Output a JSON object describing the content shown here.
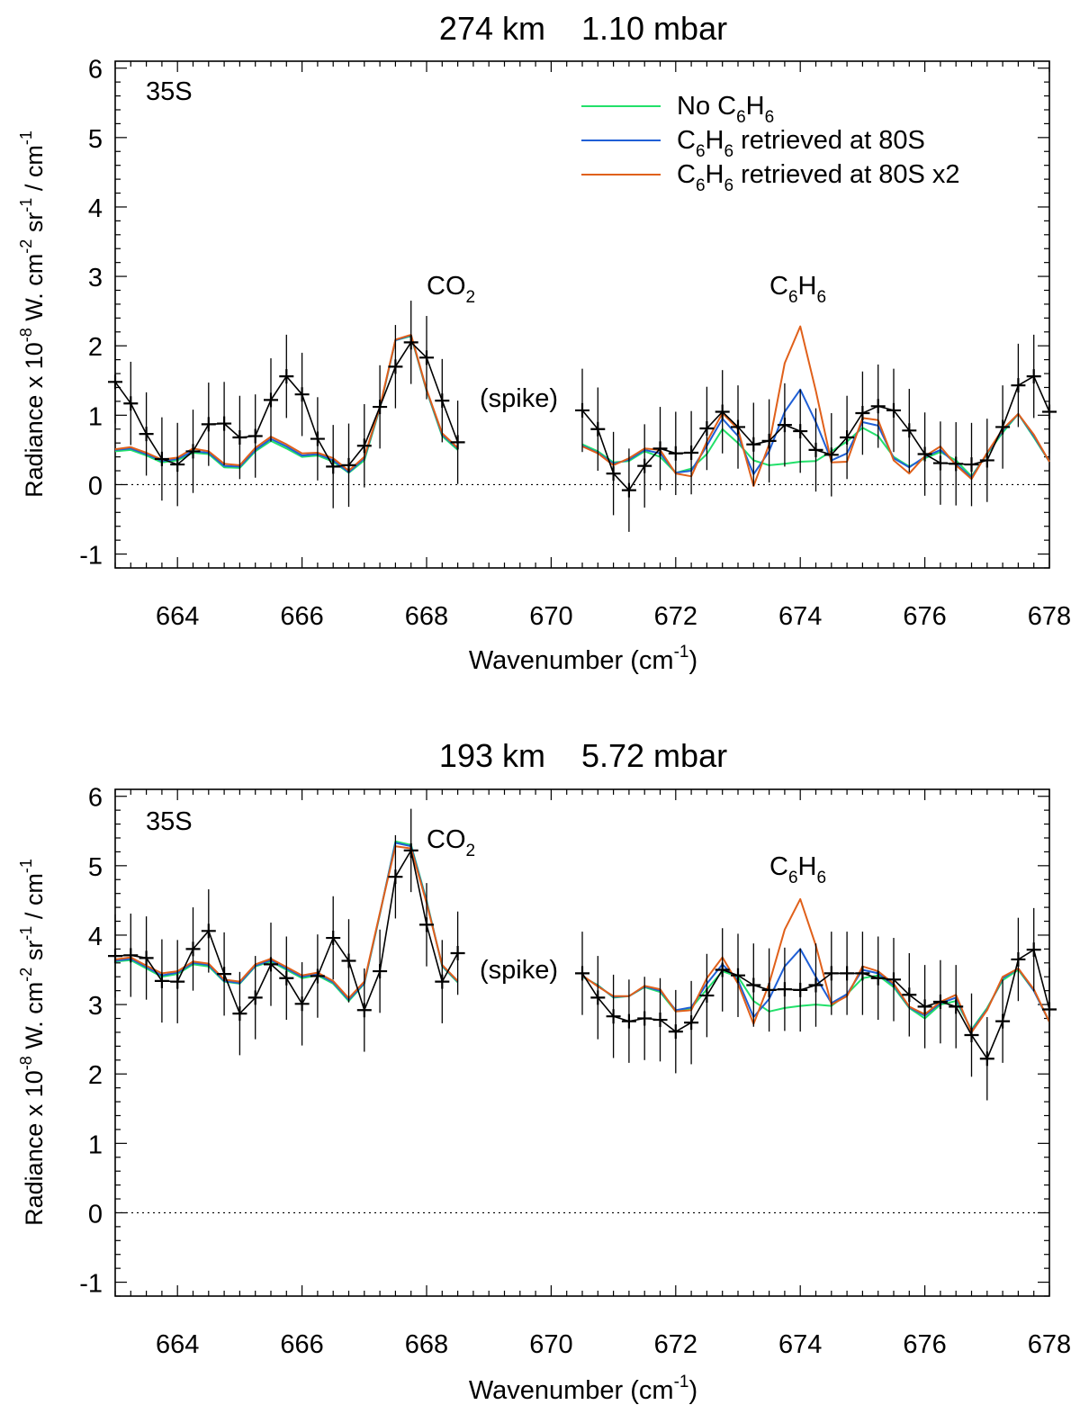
{
  "chart_data": [
    {
      "type": "line",
      "title": "274 km    1.10 mbar",
      "panel_label": "35S",
      "xlabel": "Wavenumber (cm",
      "xlabel_sup": "-1",
      "xlabel_close": ")",
      "ylabel": "Radiance x 10",
      "ylabel_sup1": "-8",
      "ylabel_mid1": " W. cm",
      "ylabel_sup2": "-2",
      "ylabel_mid2": " sr",
      "ylabel_sup3": "-1",
      "ylabel_mid3": " / cm",
      "ylabel_sup4": "-1",
      "xlim": [
        663,
        678
      ],
      "ylim": [
        -1.2,
        6.1
      ],
      "xticks": [
        "664",
        "666",
        "668",
        "670",
        "672",
        "674",
        "676",
        "678"
      ],
      "yticks": [
        "-1",
        "0",
        "1",
        "2",
        "3",
        "4",
        "5",
        "6"
      ],
      "annotations": {
        "co2": "CO",
        "co2_sub": "2",
        "c6h6": "C",
        "c6h6_sub1": "6",
        "c6h6_mid": "H",
        "c6h6_sub2": "6",
        "spike": "(spike)"
      },
      "legend": [
        {
          "pre": "No C",
          "sub1": "6",
          "mid": "H",
          "sub2": "6",
          "post": "",
          "color": "#22e06a"
        },
        {
          "pre": "C",
          "sub1": "6",
          "mid": "H",
          "sub2": "6",
          "post": " retrieved at 80S",
          "color": "#1f5fd6"
        },
        {
          "pre": "C",
          "sub1": "6",
          "mid": "H",
          "sub2": "6",
          "post": " retrieved at 80S x2",
          "color": "#e0601a"
        }
      ],
      "observed": {
        "x": [
          663.0,
          663.25,
          663.5,
          663.75,
          664.0,
          664.25,
          664.5,
          664.75,
          665.0,
          665.25,
          665.5,
          665.75,
          666.0,
          666.25,
          666.5,
          666.75,
          667.0,
          667.25,
          667.5,
          667.75,
          668.0,
          668.25,
          668.5,
          670.5,
          670.75,
          671.0,
          671.25,
          671.5,
          671.75,
          672.0,
          672.25,
          672.5,
          672.75,
          673.0,
          673.25,
          673.5,
          673.75,
          674.0,
          674.25,
          674.5,
          674.75,
          675.0,
          675.25,
          675.5,
          675.75,
          676.0,
          676.25,
          676.5,
          676.75,
          677.0,
          677.25,
          677.5,
          677.75,
          678.0
        ],
        "y": [
          1.48,
          1.17,
          0.73,
          0.37,
          0.29,
          0.48,
          0.87,
          0.88,
          0.68,
          0.7,
          1.22,
          1.56,
          1.3,
          0.66,
          0.26,
          0.28,
          0.56,
          1.12,
          1.7,
          2.05,
          1.83,
          1.21,
          0.61,
          1.07,
          0.8,
          0.16,
          -0.08,
          0.27,
          0.52,
          0.45,
          0.46,
          0.81,
          1.05,
          0.83,
          0.58,
          0.63,
          0.86,
          0.77,
          0.5,
          0.43,
          0.68,
          1.03,
          1.13,
          1.07,
          0.78,
          0.44,
          0.31,
          0.3,
          0.29,
          0.35,
          0.83,
          1.43,
          1.56,
          1.05
        ],
        "err": 0.6
      },
      "series": [
        {
          "name": "No C6H6",
          "color": "#22e06a",
          "x": [
            663.0,
            663.25,
            663.5,
            663.75,
            664.0,
            664.25,
            664.5,
            664.75,
            665.0,
            665.25,
            665.5,
            665.75,
            666.0,
            666.25,
            666.5,
            666.75,
            667.0,
            667.25,
            667.5,
            667.75,
            668.0,
            668.25,
            668.5,
            null,
            670.5,
            670.75,
            671.0,
            671.25,
            671.5,
            671.75,
            672.0,
            672.25,
            672.5,
            672.75,
            673.0,
            673.25,
            673.5,
            673.75,
            674.0,
            674.25,
            674.5,
            674.75,
            675.0,
            675.25,
            675.5,
            675.75,
            676.0,
            676.25,
            676.5,
            676.75,
            677.0,
            677.25,
            677.5,
            677.75,
            678.0
          ],
          "y": [
            0.48,
            0.5,
            0.42,
            0.32,
            0.35,
            0.46,
            0.44,
            0.25,
            0.24,
            0.48,
            0.63,
            0.52,
            0.4,
            0.42,
            0.33,
            0.17,
            0.35,
            1.1,
            2.08,
            2.14,
            1.35,
            0.7,
            0.5,
            null,
            0.58,
            0.48,
            0.32,
            0.34,
            0.48,
            0.4,
            0.17,
            0.23,
            0.44,
            0.8,
            0.6,
            0.35,
            0.28,
            0.3,
            0.33,
            0.34,
            0.48,
            0.62,
            0.82,
            0.7,
            0.4,
            0.26,
            0.38,
            0.47,
            0.35,
            0.12,
            0.44,
            0.75,
            1.02,
            0.68,
            0.33
          ]
        },
        {
          "name": "C6H6 retrieved at 80S",
          "color": "#1f5fd6",
          "x": [
            663.0,
            663.25,
            663.5,
            663.75,
            664.0,
            664.25,
            664.5,
            664.75,
            665.0,
            665.25,
            665.5,
            665.75,
            666.0,
            666.25,
            666.5,
            666.75,
            667.0,
            667.25,
            667.5,
            667.75,
            668.0,
            668.25,
            668.5,
            null,
            670.5,
            670.75,
            671.0,
            671.25,
            671.5,
            671.75,
            672.0,
            672.25,
            672.5,
            672.75,
            673.0,
            673.25,
            673.5,
            673.75,
            674.0,
            674.25,
            674.5,
            674.75,
            675.0,
            675.25,
            675.5,
            675.75,
            676.0,
            676.25,
            676.5,
            676.75,
            677.0,
            677.25,
            677.5,
            677.75,
            678.0
          ],
          "y": [
            0.5,
            0.52,
            0.44,
            0.34,
            0.37,
            0.48,
            0.46,
            0.27,
            0.26,
            0.5,
            0.66,
            0.55,
            0.42,
            0.44,
            0.35,
            0.18,
            0.38,
            1.11,
            2.08,
            2.15,
            1.36,
            0.72,
            0.52,
            null,
            0.56,
            0.46,
            0.3,
            0.36,
            0.5,
            0.45,
            0.17,
            0.2,
            0.56,
            0.95,
            0.7,
            0.15,
            0.48,
            1.05,
            1.37,
            0.9,
            0.35,
            0.45,
            0.9,
            0.85,
            0.38,
            0.25,
            0.4,
            0.5,
            0.3,
            0.1,
            0.45,
            0.78,
            1.02,
            0.7,
            0.33
          ]
        },
        {
          "name": "C6H6 retrieved at 80S x2",
          "color": "#e0601a",
          "x": [
            663.0,
            663.25,
            663.5,
            663.75,
            664.0,
            664.25,
            664.5,
            664.75,
            665.0,
            665.25,
            665.5,
            665.75,
            666.0,
            666.25,
            666.5,
            666.75,
            667.0,
            667.25,
            667.5,
            667.75,
            668.0,
            668.25,
            668.5,
            null,
            670.5,
            670.75,
            671.0,
            671.25,
            671.5,
            671.75,
            672.0,
            672.25,
            672.5,
            672.75,
            673.0,
            673.25,
            673.5,
            673.75,
            674.0,
            674.25,
            674.5,
            674.75,
            675.0,
            675.25,
            675.5,
            675.75,
            676.0,
            676.25,
            676.5,
            676.75,
            677.0,
            677.25,
            677.5,
            677.75,
            678.0
          ],
          "y": [
            0.51,
            0.54,
            0.46,
            0.36,
            0.39,
            0.52,
            0.48,
            0.3,
            0.28,
            0.53,
            0.69,
            0.58,
            0.45,
            0.46,
            0.38,
            0.2,
            0.4,
            1.12,
            2.09,
            2.16,
            1.37,
            0.74,
            0.53,
            null,
            0.55,
            0.45,
            0.28,
            0.38,
            0.52,
            0.5,
            0.16,
            0.12,
            0.62,
            1.03,
            0.8,
            -0.02,
            0.58,
            1.75,
            2.28,
            1.35,
            0.32,
            0.33,
            0.96,
            0.93,
            0.35,
            0.16,
            0.41,
            0.55,
            0.28,
            0.08,
            0.46,
            0.8,
            1.02,
            0.72,
            0.33
          ]
        }
      ]
    },
    {
      "type": "line",
      "title": "193 km    5.72 mbar",
      "panel_label": "35S",
      "xlabel": "Wavenumber (cm",
      "xlabel_sup": "-1",
      "xlabel_close": ")",
      "ylabel": "Radiance x 10",
      "ylabel_sup1": "-8",
      "ylabel_mid1": " W. cm",
      "ylabel_sup2": "-2",
      "ylabel_mid2": " sr",
      "ylabel_sup3": "-1",
      "ylabel_mid3": " / cm",
      "ylabel_sup4": "-1",
      "xlim": [
        663,
        678
      ],
      "ylim": [
        -1.2,
        6.1
      ],
      "xticks": [
        "664",
        "666",
        "668",
        "670",
        "672",
        "674",
        "676",
        "678"
      ],
      "yticks": [
        "-1",
        "0",
        "1",
        "2",
        "3",
        "4",
        "5",
        "6"
      ],
      "annotations": {
        "co2": "CO",
        "co2_sub": "2",
        "c6h6": "C",
        "c6h6_sub1": "6",
        "c6h6_mid": "H",
        "c6h6_sub2": "6",
        "spike": "(spike)"
      },
      "legend": [],
      "observed": {
        "x": [
          663.0,
          663.25,
          663.5,
          663.75,
          664.0,
          664.25,
          664.5,
          664.75,
          665.0,
          665.25,
          665.5,
          665.75,
          666.0,
          666.25,
          666.5,
          666.75,
          667.0,
          667.25,
          667.5,
          667.75,
          668.0,
          668.25,
          668.5,
          670.5,
          670.75,
          671.0,
          671.25,
          671.5,
          671.75,
          672.0,
          672.25,
          672.5,
          672.75,
          673.0,
          673.25,
          673.5,
          673.75,
          674.0,
          674.25,
          674.5,
          674.75,
          675.0,
          675.25,
          675.5,
          675.75,
          676.0,
          676.25,
          676.5,
          676.75,
          677.0,
          677.25,
          677.5,
          677.75,
          678.0
        ],
        "y": [
          3.7,
          3.71,
          3.67,
          3.34,
          3.33,
          3.8,
          4.06,
          3.44,
          2.87,
          3.1,
          3.58,
          3.38,
          3.01,
          3.41,
          3.96,
          3.63,
          2.92,
          3.48,
          4.84,
          5.22,
          4.15,
          3.33,
          3.74,
          3.45,
          3.1,
          2.83,
          2.76,
          2.8,
          2.78,
          2.61,
          2.74,
          3.13,
          3.5,
          3.42,
          3.28,
          3.21,
          3.22,
          3.21,
          3.28,
          3.45,
          3.45,
          3.45,
          3.38,
          3.36,
          3.14,
          2.97,
          3.04,
          2.97,
          2.56,
          2.22,
          2.76,
          3.65,
          3.79,
          2.93
        ],
        "err": 0.6
      },
      "series": [
        {
          "name": "No C6H6",
          "color": "#22e06a",
          "x": [
            663.0,
            663.25,
            663.5,
            663.75,
            664.0,
            664.25,
            664.5,
            664.75,
            665.0,
            665.25,
            665.5,
            665.75,
            666.0,
            666.25,
            666.5,
            666.75,
            667.0,
            667.25,
            667.5,
            667.75,
            668.0,
            668.25,
            668.5,
            null,
            670.5,
            670.75,
            671.0,
            671.25,
            671.5,
            671.75,
            672.0,
            672.25,
            672.5,
            672.75,
            673.0,
            673.25,
            673.5,
            673.75,
            674.0,
            674.25,
            674.5,
            674.75,
            675.0,
            675.25,
            675.5,
            675.75,
            676.0,
            676.25,
            676.5,
            676.75,
            677.0,
            677.25,
            677.5,
            677.75,
            678.0
          ],
          "y": [
            3.62,
            3.64,
            3.52,
            3.4,
            3.44,
            3.58,
            3.55,
            3.33,
            3.3,
            3.55,
            3.62,
            3.5,
            3.38,
            3.42,
            3.3,
            3.05,
            3.3,
            4.3,
            5.35,
            5.3,
            4.5,
            3.55,
            3.32,
            null,
            3.4,
            3.28,
            3.1,
            3.12,
            3.25,
            3.18,
            2.9,
            2.95,
            3.22,
            3.48,
            3.4,
            3.05,
            2.9,
            2.95,
            2.98,
            3.0,
            2.98,
            3.15,
            3.38,
            3.42,
            3.25,
            2.95,
            2.8,
            3.0,
            3.05,
            2.64,
            2.95,
            3.35,
            3.5,
            3.2,
            2.75
          ]
        },
        {
          "name": "C6H6 retrieved at 80S",
          "color": "#1f5fd6",
          "x": [
            663.0,
            663.25,
            663.5,
            663.75,
            664.0,
            664.25,
            664.5,
            664.75,
            665.0,
            665.25,
            665.5,
            665.75,
            666.0,
            666.25,
            666.5,
            666.75,
            667.0,
            667.25,
            667.5,
            667.75,
            668.0,
            668.25,
            668.5,
            null,
            670.5,
            670.75,
            671.0,
            671.25,
            671.5,
            671.75,
            672.0,
            672.25,
            672.5,
            672.75,
            673.0,
            673.25,
            673.5,
            673.75,
            674.0,
            674.25,
            674.5,
            674.75,
            675.0,
            675.25,
            675.5,
            675.75,
            676.0,
            676.25,
            676.5,
            676.75,
            677.0,
            677.25,
            677.5,
            677.75,
            678.0
          ],
          "y": [
            3.63,
            3.66,
            3.54,
            3.42,
            3.46,
            3.6,
            3.57,
            3.34,
            3.31,
            3.56,
            3.64,
            3.52,
            3.4,
            3.44,
            3.32,
            3.07,
            3.31,
            4.31,
            5.33,
            5.28,
            4.48,
            3.56,
            3.33,
            null,
            3.41,
            3.27,
            3.11,
            3.12,
            3.26,
            3.2,
            2.92,
            2.96,
            3.3,
            3.58,
            3.35,
            2.82,
            3.08,
            3.55,
            3.8,
            3.4,
            3.02,
            3.15,
            3.5,
            3.45,
            3.28,
            2.96,
            2.84,
            3.02,
            3.1,
            2.62,
            2.93,
            3.38,
            3.52,
            3.2,
            2.75
          ]
        },
        {
          "name": "C6H6 retrieved at 80S x2",
          "color": "#e0601a",
          "x": [
            663.0,
            663.25,
            663.5,
            663.75,
            664.0,
            664.25,
            664.5,
            664.75,
            665.0,
            665.25,
            665.5,
            665.75,
            666.0,
            666.25,
            666.5,
            666.75,
            667.0,
            667.25,
            667.5,
            667.75,
            668.0,
            668.25,
            668.5,
            null,
            670.5,
            670.75,
            671.0,
            671.25,
            671.5,
            671.75,
            672.0,
            672.25,
            672.5,
            672.75,
            673.0,
            673.25,
            673.5,
            673.75,
            674.0,
            674.25,
            674.5,
            674.75,
            675.0,
            675.25,
            675.5,
            675.75,
            676.0,
            676.25,
            676.5,
            676.75,
            677.0,
            677.25,
            677.5,
            677.75,
            678.0
          ],
          "y": [
            3.65,
            3.68,
            3.56,
            3.45,
            3.48,
            3.62,
            3.59,
            3.36,
            3.33,
            3.58,
            3.66,
            3.54,
            3.42,
            3.46,
            3.34,
            3.09,
            3.33,
            4.32,
            5.28,
            5.25,
            4.46,
            3.57,
            3.34,
            null,
            3.42,
            3.26,
            3.12,
            3.12,
            3.27,
            3.22,
            2.9,
            2.92,
            3.38,
            3.68,
            3.3,
            2.72,
            3.3,
            4.08,
            4.52,
            3.85,
            3.0,
            3.12,
            3.55,
            3.48,
            3.3,
            2.97,
            2.86,
            3.04,
            3.14,
            2.6,
            2.92,
            3.4,
            3.52,
            3.22,
            2.75
          ]
        }
      ]
    }
  ]
}
